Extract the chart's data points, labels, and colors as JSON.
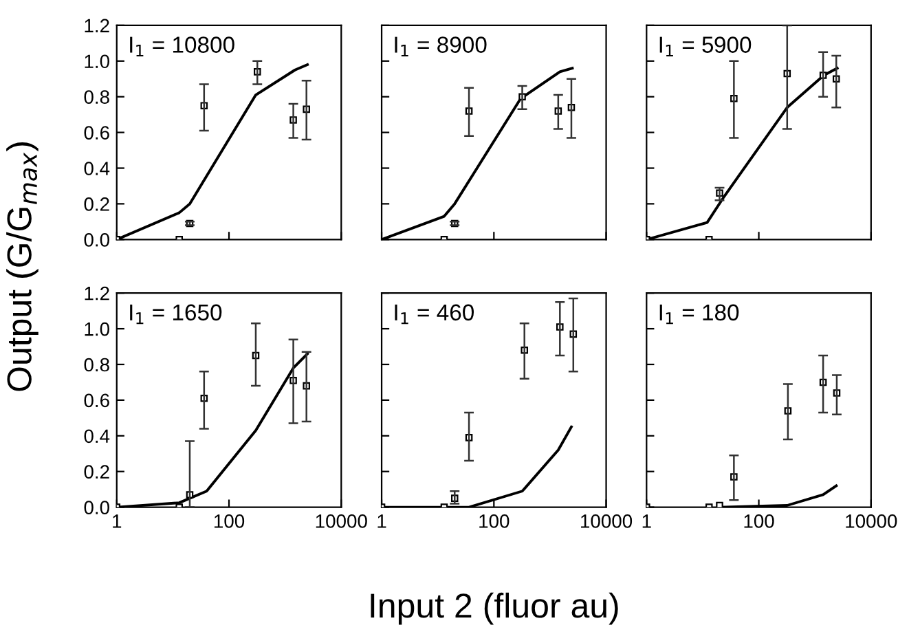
{
  "chart_data": [
    {
      "type": "scatter",
      "title": "I$_{1}$ = 10800",
      "ylabel": "Output (G/G$_{max}$)",
      "log": "x",
      "xlim": [
        1,
        10000
      ],
      "xticks": [
        {
          "value": 1,
          "label": null
        },
        {
          "value": 100,
          "label": null
        },
        {
          "value": 10000,
          "label": null
        }
      ],
      "ylim": [
        0,
        1.2
      ],
      "yticks": [
        {
          "value": 0,
          "label": "0.0"
        },
        0.2,
        0.4,
        0.6,
        0.8,
        {
          "value": 1,
          "label": "1.0"
        },
        1.2
      ],
      "tick_labels": "y",
      "grid": false,
      "legend": false,
      "series": [
        {
          "type": "scatter",
          "marker": "square",
          "color": "#000000",
          "x": [
            1,
            13,
            20,
            36,
            320,
            1400,
            2400
          ],
          "values": [
            0,
            0,
            0.09,
            0.75,
            0.94,
            0.67,
            0.73
          ],
          "errors": [
            null,
            null,
            [
              0.08,
              0.1
            ],
            [
              0.61,
              0.87
            ],
            [
              0.87,
              1.0
            ],
            [
              0.57,
              0.76
            ],
            [
              0.56,
              0.89
            ]
          ]
        },
        {
          "type": "line",
          "marker": "none",
          "color": "#000000",
          "x": [
            1,
            13,
            20,
            300,
            1500,
            2500
          ],
          "values": [
            0,
            0.15,
            0.2,
            0.81,
            0.95,
            0.98
          ]
        }
      ]
    },
    {
      "type": "scatter",
      "title": "I$_{1}$ = 8900",
      "log": "x",
      "xlim": [
        1,
        10000
      ],
      "xticks": [
        {
          "value": 1,
          "label": null
        },
        {
          "value": 100,
          "label": null
        },
        {
          "value": 10000,
          "label": null
        }
      ],
      "ylim": [
        0,
        1.2
      ],
      "yticks": [
        {
          "value": 0,
          "label": null
        },
        {
          "value": 0.2,
          "label": null
        },
        {
          "value": 0.4,
          "label": null
        },
        {
          "value": 0.6,
          "label": null
        },
        {
          "value": 0.8,
          "label": null
        },
        {
          "value": 1,
          "label": null
        },
        {
          "value": 1.2,
          "label": null
        }
      ],
      "tick_labels": false,
      "grid": false,
      "legend": false,
      "series": [
        {
          "type": "scatter",
          "marker": "square",
          "color": "#000000",
          "x": [
            13,
            20,
            36,
            320,
            1400,
            2400
          ],
          "values": [
            0,
            0.09,
            0.72,
            0.8,
            0.72,
            0.74
          ],
          "errors": [
            null,
            [
              0.08,
              0.1
            ],
            [
              0.58,
              0.85
            ],
            [
              0.73,
              0.86
            ],
            [
              0.62,
              0.81
            ],
            [
              0.57,
              0.9
            ]
          ]
        },
        {
          "type": "line",
          "marker": "none",
          "color": "#000000",
          "x": [
            1,
            13,
            20,
            300,
            1500,
            2500
          ],
          "values": [
            0,
            0.13,
            0.2,
            0.79,
            0.94,
            0.96
          ]
        }
      ]
    },
    {
      "type": "scatter",
      "title": "I$_{1}$ = 5900",
      "log": "x",
      "xlim": [
        1,
        10000
      ],
      "xticks": [
        {
          "value": 1,
          "label": null
        },
        {
          "value": 100,
          "label": null
        },
        {
          "value": 10000,
          "label": null
        }
      ],
      "ylim": [
        0,
        1.2
      ],
      "yticks": [
        {
          "value": 0,
          "label": null
        },
        {
          "value": 0.2,
          "label": null
        },
        {
          "value": 0.4,
          "label": null
        },
        {
          "value": 0.6,
          "label": null
        },
        {
          "value": 0.8,
          "label": null
        },
        {
          "value": 1,
          "label": null
        },
        {
          "value": 1.2,
          "label": null
        }
      ],
      "tick_labels": false,
      "grid": false,
      "legend": false,
      "series": [
        {
          "type": "scatter",
          "marker": "square",
          "color": "#000000",
          "x": [
            1,
            13,
            20,
            36,
            320,
            1400,
            2400
          ],
          "values": [
            0,
            0,
            0.26,
            0.79,
            0.93,
            0.92,
            0.9
          ],
          "errors": [
            null,
            null,
            [
              0.22,
              0.29
            ],
            [
              0.57,
              1.0
            ],
            [
              0.62,
              1.2
            ],
            [
              0.8,
              1.05
            ],
            [
              0.74,
              1.03
            ]
          ]
        },
        {
          "type": "line",
          "marker": "none",
          "color": "#000000",
          "x": [
            1,
            12,
            24,
            320,
            1440,
            2500
          ],
          "values": [
            0,
            0.095,
            0.24,
            0.74,
            0.92,
            0.96
          ]
        }
      ]
    },
    {
      "type": "scatter",
      "title": "I$_{1}$ = 1650",
      "log": "x",
      "xlim": [
        1,
        10000
      ],
      "xticks": [
        1,
        100,
        10000
      ],
      "ylim": [
        0,
        1.2
      ],
      "yticks": [
        {
          "value": 0,
          "label": "0.0"
        },
        0.2,
        0.4,
        0.6,
        0.8,
        {
          "value": 1,
          "label": "1.0"
        },
        1.2
      ],
      "grid": false,
      "legend": false,
      "series": [
        {
          "type": "scatter",
          "marker": "square",
          "color": "#000000",
          "x": [
            1,
            13,
            20,
            36,
            300,
            1400,
            2400
          ],
          "values": [
            0,
            0,
            0.07,
            0.61,
            0.85,
            0.71,
            0.68
          ],
          "errors": [
            null,
            null,
            [
              0,
              0.37
            ],
            [
              0.44,
              0.76
            ],
            [
              0.68,
              1.03
            ],
            [
              0.47,
              0.94
            ],
            [
              0.48,
              0.87
            ]
          ]
        },
        {
          "type": "line",
          "marker": "none",
          "color": "#000000",
          "x": [
            1,
            13,
            40,
            300,
            1400,
            2500
          ],
          "values": [
            0,
            0.025,
            0.09,
            0.43,
            0.78,
            0.86
          ]
        }
      ]
    },
    {
      "type": "scatter",
      "title": "I$_{1}$ = 460",
      "xlabel": "Input 2 (fluor au)",
      "log": "x",
      "xlim": [
        1,
        10000
      ],
      "xticks": [
        1,
        100,
        10000
      ],
      "ylim": [
        0,
        1.2
      ],
      "yticks": [
        {
          "value": 0,
          "label": null
        },
        {
          "value": 0.2,
          "label": null
        },
        {
          "value": 0.4,
          "label": null
        },
        {
          "value": 0.6,
          "label": null
        },
        {
          "value": 0.8,
          "label": null
        },
        {
          "value": 1,
          "label": null
        },
        {
          "value": 1.2,
          "label": null
        }
      ],
      "tick_labels": "x",
      "grid": false,
      "legend": false,
      "series": [
        {
          "type": "scatter",
          "marker": "square",
          "color": "#000000",
          "x": [
            1,
            13,
            20,
            36,
            350,
            1500,
            2600
          ],
          "values": [
            0,
            0,
            0.05,
            0.39,
            0.88,
            1.01,
            0.97
          ],
          "errors": [
            null,
            null,
            [
              0.02,
              0.09
            ],
            [
              0.26,
              0.53
            ],
            [
              0.72,
              1.03
            ],
            [
              0.85,
              1.15
            ],
            [
              0.76,
              1.17
            ]
          ]
        },
        {
          "type": "line",
          "marker": "none",
          "color": "#000000",
          "x": [
            1,
            13,
            36,
            320,
            1400,
            2400
          ],
          "values": [
            0,
            0,
            0,
            0.09,
            0.32,
            0.45
          ]
        }
      ]
    },
    {
      "type": "scatter",
      "title": "I$_{1}$ = 180",
      "log": "x",
      "xlim": [
        1,
        10000
      ],
      "xticks": [
        1,
        100,
        10000
      ],
      "ylim": [
        0,
        1.2
      ],
      "yticks": [
        {
          "value": 0,
          "label": null
        },
        {
          "value": 0.2,
          "label": null
        },
        {
          "value": 0.4,
          "label": null
        },
        {
          "value": 0.6,
          "label": null
        },
        {
          "value": 0.8,
          "label": null
        },
        {
          "value": 1,
          "label": null
        },
        {
          "value": 1.2,
          "label": null
        }
      ],
      "tick_labels": "x",
      "grid": false,
      "legend": false,
      "series": [
        {
          "type": "scatter",
          "marker": "square",
          "color": "#000000",
          "x": [
            1,
            13,
            20,
            36,
            330,
            1400,
            2450
          ],
          "values": [
            0,
            0,
            0.01,
            0.17,
            0.54,
            0.7,
            0.64
          ],
          "errors": [
            null,
            null,
            null,
            [
              0.04,
              0.29
            ],
            [
              0.38,
              0.69
            ],
            [
              0.53,
              0.85
            ],
            [
              0.52,
              0.74
            ]
          ]
        },
        {
          "type": "line",
          "marker": "none",
          "color": "#000000",
          "x": [
            20,
            320,
            1400,
            2400
          ],
          "values": [
            0,
            0.01,
            0.07,
            0.12
          ]
        }
      ]
    }
  ]
}
